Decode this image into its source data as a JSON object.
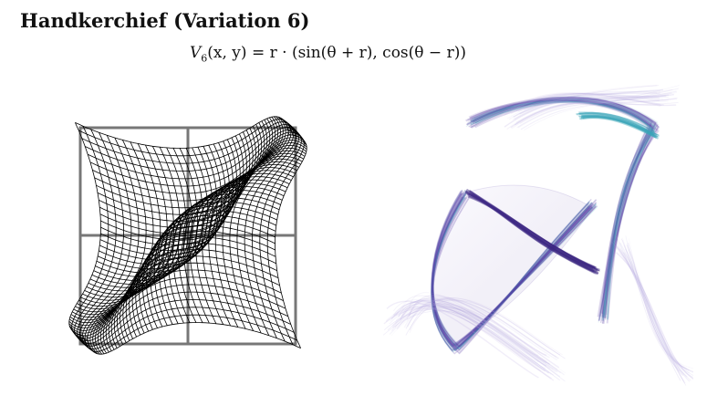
{
  "figure": {
    "title": "Handkerchief (Variation 6)",
    "formula": {
      "lhs_name": "V",
      "lhs_sub": "6",
      "lhs_args": "(x, y)",
      "rhs": "= r · (sin(θ + r), cos(θ − r))"
    },
    "colors": {
      "text": "#111111",
      "grid_frame": "#777777",
      "mesh": "#000000",
      "fractal_purple": "#5a3fa6",
      "fractal_teal": "#3aa5b8",
      "fractal_lavender": "#b6a9e0"
    }
  }
}
